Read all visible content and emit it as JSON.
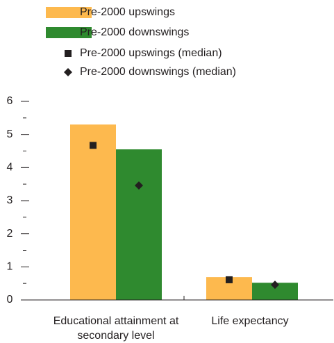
{
  "chart_data": {
    "type": "bar",
    "categories": [
      "Educational attainment at secondary level",
      "Life expectancy"
    ],
    "series": [
      {
        "name": "Pre-2000 upswings",
        "color": "#fdb94e",
        "values": [
          5.3,
          0.69
        ]
      },
      {
        "name": "Pre-2000 downswings",
        "color": "#2f8a2f",
        "values": [
          4.55,
          0.52
        ]
      }
    ],
    "medians": [
      {
        "name": "Pre-2000 upswings (median)",
        "marker": "square",
        "color": "#231f20",
        "values": [
          4.67,
          0.61
        ]
      },
      {
        "name": "Pre-2000 downswings (median)",
        "marker": "diamond",
        "color": "#231f20",
        "values": [
          3.46,
          0.46
        ]
      }
    ],
    "ylim": [
      0,
      6
    ],
    "yticks": [
      0,
      1,
      2,
      3,
      4,
      5,
      6
    ],
    "yminorticks": [
      0.5,
      1.5,
      2.5,
      3.5,
      4.5,
      5.5
    ]
  }
}
